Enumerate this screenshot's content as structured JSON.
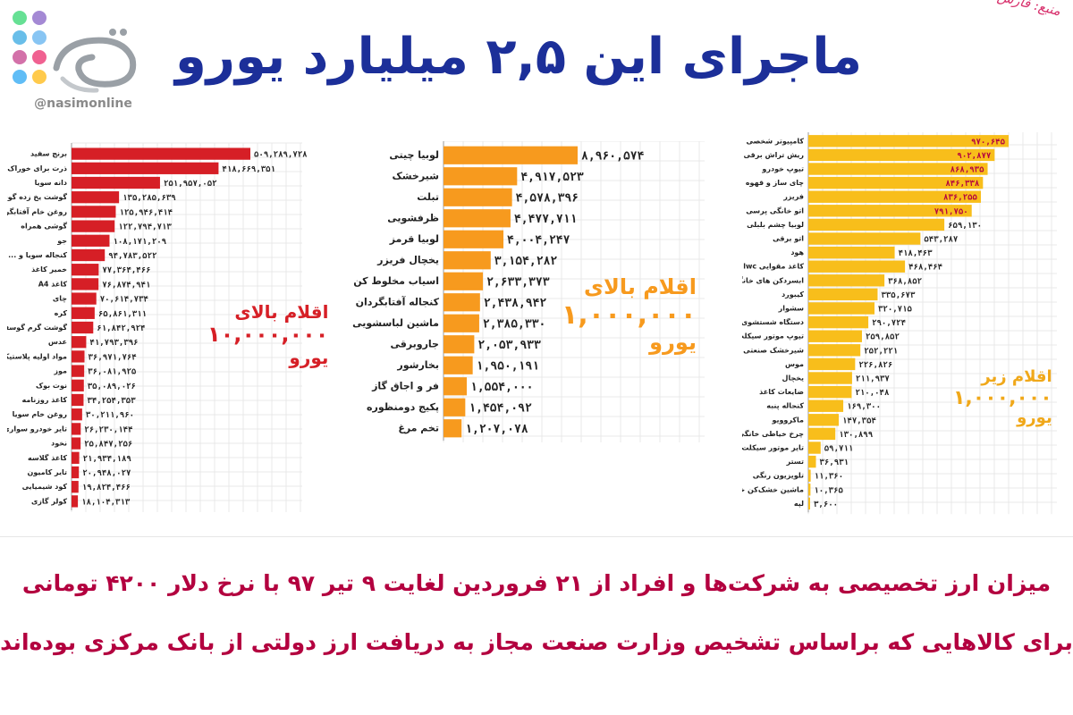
{
  "header": {
    "title": "ماجرای این ۲,۵ میلیارد یورو",
    "source": "منبع: فارس",
    "handle": "@nasimonline"
  },
  "colors": {
    "red": "#d61f26",
    "orange": "#f79a1e",
    "yellow": "#f8be1b",
    "title": "#1c2f99",
    "footer": "#b3003f",
    "notes": "#d61f26"
  },
  "logo": {
    "icons": [
      "whatsapp-icon",
      "telegram-icon",
      "instagram-icon",
      "twitter-icon",
      "chat-icon",
      "bird-icon",
      "aparat-icon",
      "smile-icon"
    ]
  },
  "chart_data": [
    {
      "type": "bar",
      "orientation": "horizontal",
      "note": [
        "اقلام بالای",
        "۱۰,۰۰۰,۰۰۰",
        "یورو"
      ],
      "categories": [
        "برنج سفید",
        "ذرت برای خوراک دام",
        "دانه سویا",
        "گوشت یخ زده گوساله",
        "روغن خام آفتابگردان",
        "گوشی همراه",
        "جو",
        "کنجاله سویا و ...",
        "خمیر کاغذ",
        "کاغذ A4",
        "چای",
        "کره",
        "گوشت گرم گوسفندی",
        "عدس",
        "مواد اولیه پلاستیکی",
        "موز",
        "نوت بوک",
        "کاغذ روزنامه",
        "روغن خام سویا",
        "تایر خودرو سواری",
        "نخود",
        "کاغذ گلاسه",
        "تایر کامیون",
        "کود شیمیایی",
        "کولر گازی"
      ],
      "labels": [
        "۵۰۹,۲۸۹,۷۲۸",
        "۴۱۸,۶۶۹,۳۵۱",
        "۲۵۱,۹۵۷,۰۵۲",
        "۱۳۵,۲۸۵,۶۳۹",
        "۱۲۵,۹۴۶,۴۱۴",
        "۱۲۲,۷۹۴,۷۱۳",
        "۱۰۸,۱۷۱,۲۰۹",
        "۹۴,۷۸۳,۵۲۲",
        "۷۷,۳۶۴,۴۶۶",
        "۷۶,۸۷۴,۹۴۱",
        "۷۰,۶۱۴,۷۳۴",
        "۶۵,۸۶۱,۳۱۱",
        "۶۱,۸۴۲,۹۲۴",
        "۴۱,۷۹۳,۳۹۶",
        "۳۶,۹۷۱,۷۶۴",
        "۳۶,۰۸۱,۹۲۵",
        "۳۵,۰۸۹,۰۲۶",
        "۳۴,۲۵۴,۳۵۳",
        "۳۰,۲۱۱,۹۶۰",
        "۲۶,۲۳۰,۱۴۴",
        "۲۵,۸۴۷,۲۵۶",
        "۲۱,۹۳۴,۱۸۹",
        "۲۰,۹۴۸,۰۲۷",
        "۱۹,۸۲۴,۴۶۶",
        "۱۸,۱۰۴,۳۱۳"
      ],
      "values": [
        509289728,
        418669351,
        251957052,
        135285639,
        125946414,
        122794713,
        108171209,
        94783522,
        77364466,
        76874941,
        70614734,
        65861311,
        61842924,
        41793396,
        36971764,
        36081925,
        35089026,
        34254353,
        30211960,
        26230144,
        25847256,
        21934189,
        20948027,
        19824466,
        18104313
      ]
    },
    {
      "type": "bar",
      "orientation": "horizontal",
      "note": [
        "اقلام بالای",
        "۱,۰۰۰,۰۰۰",
        "یورو"
      ],
      "categories": [
        "لوبیا چیتی",
        "شیرخشک",
        "تبلت",
        "ظرفشویی",
        "لوبیا قرمز",
        "یخچال فریزر",
        "اسیاب مخلوط کن",
        "کنجاله آفتابگردان",
        "ماشین لباسشویی",
        "جاروبرقی",
        "بخارشور",
        "فر و اجاق گاز",
        "پکیج دومنظوره",
        "تخم مرغ"
      ],
      "labels": [
        "۸,۹۶۰,۵۷۴",
        "۴,۹۱۷,۵۲۳",
        "۴,۵۷۸,۳۹۶",
        "۴,۴۷۷,۷۱۱",
        "۴,۰۰۴,۲۴۷",
        "۳,۱۵۴,۲۸۲",
        "۲,۶۳۳,۳۷۳",
        "۲,۴۳۸,۹۴۲",
        "۲,۳۸۵,۳۳۰",
        "۲,۰۵۳,۹۳۳",
        "۱,۹۵۰,۱۹۱",
        "۱,۵۵۴,۰۰۰",
        "۱,۴۵۴,۰۹۲",
        "۱,۲۰۷,۰۷۸"
      ],
      "values": [
        8960574,
        4917523,
        4578396,
        4477711,
        4004247,
        3154282,
        2633373,
        2438942,
        2385330,
        2053933,
        1950191,
        1554000,
        1454092,
        1207078
      ]
    },
    {
      "type": "bar",
      "orientation": "horizontal",
      "note": [
        "اقلام زیر",
        "۱,۰۰۰,۰۰۰",
        "یورو"
      ],
      "categories": [
        "کامپیوتر شخصی",
        "ریش تراش برقی",
        "تیوپ خودرو",
        "چای ساز و قهوه",
        "فریزر",
        "اتو خانگی پرسی",
        "لوبیا چشم بلبلی",
        "اتو برقی",
        "هود",
        "کاغذ مقوایی lwc",
        "ابسردکن های خانگی",
        "کیبورد",
        "سشوار",
        "دستگاه شستشوی خودرو",
        "تیوپ موتور سیکلت",
        "شیرخشک صنعتی",
        "موس",
        "یخچال",
        "ضایعات کاغذ",
        "کنجاله پنبه",
        "ماکروویو",
        "چرخ خیاطی خانگی",
        "تایر موتور سیکلت",
        "تستر",
        "تلویزیون رنگی",
        "ماشین خشک‌کن خانگی",
        "لپه"
      ],
      "labels": [
        "۹۷۰,۶۴۵",
        "۹۰۲,۸۷۷",
        "۸۶۸,۹۳۵",
        "۸۴۶,۳۳۸",
        "۸۳۶,۲۵۵",
        "۷۹۱,۷۵۰",
        "۶۵۹,۱۳۰",
        "۵۴۳,۲۸۷",
        "۴۱۸,۴۶۳",
        "۴۶۸,۴۶۴",
        "۳۶۸,۸۵۲",
        "۳۳۵,۶۷۳",
        "۳۲۰,۷۱۵",
        "۲۹۰,۷۲۴",
        "۲۵۹,۸۵۲",
        "۲۵۲,۲۲۱",
        "۲۲۶,۸۲۶",
        "۲۱۱,۹۳۷",
        "۲۱۰,۰۴۸",
        "۱۶۹,۳۰۰",
        "۱۴۷,۳۵۴",
        "۱۳۰,۸۹۹",
        "۵۹,۷۱۱",
        "۳۶,۹۳۱",
        "۱۱,۳۶۰",
        "۱۰,۳۶۵",
        "۳,۶۰۰"
      ],
      "values": [
        970645,
        902877,
        868935,
        846338,
        836255,
        791750,
        659130,
        543287,
        418463,
        468464,
        368852,
        335673,
        320715,
        290724,
        259852,
        252221,
        226826,
        211937,
        210048,
        169300,
        147354,
        130899,
        59711,
        36931,
        11360,
        10365,
        3600
      ]
    }
  ],
  "footer": {
    "line1": "میزان ارز تخصیصی به شرکت‌ها و افراد از ۲۱ فروردین لغایت ۹ تیر ۹۷ با نرخ دلار ۴۲۰۰ تومانی",
    "line2": "برای کالاهایی که براساس تشخیص وزارت صنعت مجاز به دریافت ارز دولتی از بانک مرکزی بوده‌اند"
  }
}
